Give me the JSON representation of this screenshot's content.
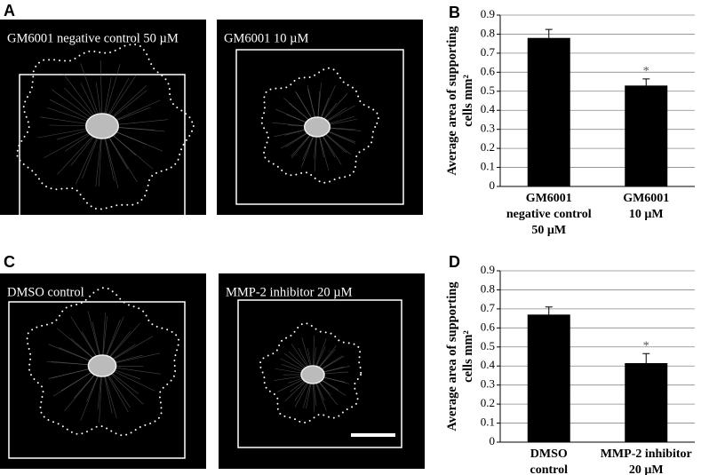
{
  "panel_labels": [
    "A",
    "B",
    "C",
    "D"
  ],
  "images": [
    {
      "caption": "GM6001 negative control 50 µM"
    },
    {
      "caption": "GM6001 10 µM"
    },
    {
      "caption": "DMSO control"
    },
    {
      "caption": "MMP-2 inhibitor 20 µM"
    }
  ],
  "chart_data": [
    {
      "type": "bar",
      "y_label": "Average area of supporting\ncells mm²",
      "categories": [
        "GM6001\nnegative control\n50 µM",
        "GM6001\n\n10 µM"
      ],
      "values": [
        0.78,
        0.53
      ],
      "errors": [
        0.045,
        0.035
      ],
      "color": "#000000",
      "significant": [
        false,
        true
      ],
      "significance_label": "*",
      "ylim": [
        0,
        0.9
      ],
      "yticks": [
        0,
        0.1,
        0.2,
        0.3,
        0.4,
        0.5,
        0.6,
        0.7,
        0.8,
        0.9
      ],
      "grid": true
    },
    {
      "type": "bar",
      "y_label": "Average area of supporting\ncells mm²",
      "categories": [
        "DMSO\ncontrol",
        "MMP-2 inhibitor\n20 µM"
      ],
      "values": [
        0.67,
        0.415
      ],
      "errors": [
        0.04,
        0.05
      ],
      "color": "#000000",
      "significant": [
        false,
        true
      ],
      "significance_label": "*",
      "ylim": [
        0,
        0.9
      ],
      "yticks": [
        0,
        0.1,
        0.2,
        0.3,
        0.4,
        0.5,
        0.6,
        0.7,
        0.8,
        0.9
      ],
      "grid": true
    }
  ]
}
